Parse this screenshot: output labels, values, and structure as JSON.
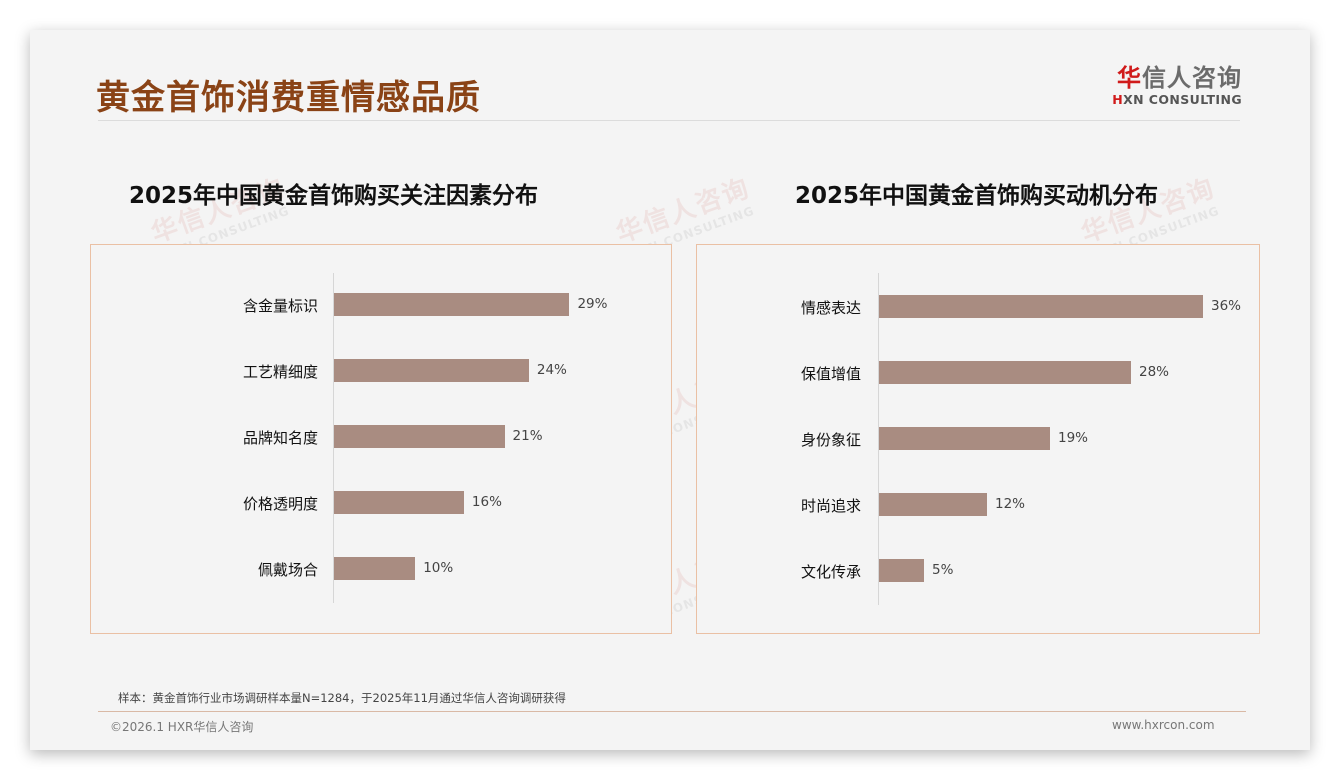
{
  "header": {
    "title": "黄金首饰消费重情感品质",
    "logo": {
      "cn_red": "华",
      "cn_rest": "信人咨询",
      "en_red": "H",
      "en_rest": "XN CONSULTING"
    }
  },
  "watermark": {
    "cn": "华信人咨询",
    "en": "HXN CONSULTING"
  },
  "colors": {
    "title": "#8a4316",
    "bar": "#a98c81",
    "box_border": "#eac0a4",
    "logo_red": "#d01a1a"
  },
  "charts": [
    {
      "title": "2025年中国黄金首饰购买关注因素分布",
      "categories": [
        "含金量标识",
        "工艺精细度",
        "品牌知名度",
        "价格透明度",
        "佩戴场合"
      ],
      "labels": [
        "29%",
        "24%",
        "21%",
        "16%",
        "10%"
      ]
    },
    {
      "title": "2025年中国黄金首饰购买动机分布",
      "categories": [
        "情感表达",
        "保值增值",
        "身份象征",
        "时尚追求",
        "文化传承"
      ],
      "labels": [
        "36%",
        "28%",
        "19%",
        "12%",
        "5%"
      ]
    }
  ],
  "chart_data": [
    {
      "type": "bar",
      "orientation": "horizontal",
      "title": "2025年中国黄金首饰购买关注因素分布",
      "categories": [
        "含金量标识",
        "工艺精细度",
        "品牌知名度",
        "价格透明度",
        "佩戴场合"
      ],
      "values": [
        29,
        24,
        21,
        16,
        10
      ],
      "unit": "%",
      "xlabel": "",
      "ylabel": "",
      "grid": false,
      "legend": null
    },
    {
      "type": "bar",
      "orientation": "horizontal",
      "title": "2025年中国黄金首饰购买动机分布",
      "categories": [
        "情感表达",
        "保值增值",
        "身份象征",
        "时尚追求",
        "文化传承"
      ],
      "values": [
        36,
        28,
        19,
        12,
        5
      ],
      "unit": "%",
      "xlabel": "",
      "ylabel": "",
      "grid": false,
      "legend": null
    }
  ],
  "footer": {
    "note": "样本：黄金首饰行业市场调研样本量N=1284，于2025年11月通过华信人咨询调研获得",
    "copyright": "©2026.1 HXR华信人咨询",
    "website": "www.hxrcon.com"
  }
}
